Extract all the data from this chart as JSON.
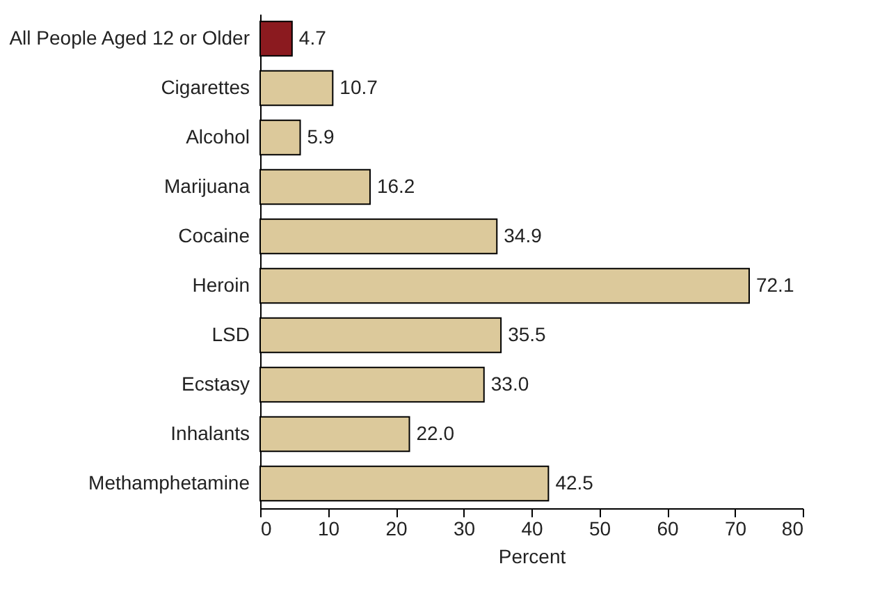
{
  "chart_data": {
    "type": "bar",
    "orientation": "horizontal",
    "xlabel": "Percent",
    "categories": [
      "All People Aged 12 or Older",
      "Cigarettes",
      "Alcohol",
      "Marijuana",
      "Cocaine",
      "Heroin",
      "LSD",
      "Ecstasy",
      "Inhalants",
      "Methamphetamine"
    ],
    "values": [
      4.7,
      10.7,
      5.9,
      16.2,
      34.9,
      72.1,
      35.5,
      33.0,
      22.0,
      42.5
    ],
    "value_labels": [
      "4.7",
      "10.7",
      "5.9",
      "16.2",
      "34.9",
      "72.1",
      "35.5",
      "33.0",
      "22.0",
      "42.5"
    ],
    "colors": [
      "#8b1a1f",
      "#dcc99b",
      "#dcc99b",
      "#dcc99b",
      "#dcc99b",
      "#dcc99b",
      "#dcc99b",
      "#dcc99b",
      "#dcc99b",
      "#dcc99b"
    ],
    "xlim": [
      0,
      80
    ],
    "xticks": [
      0,
      10,
      20,
      30,
      40,
      50,
      60,
      70,
      80
    ],
    "grid": false
  }
}
